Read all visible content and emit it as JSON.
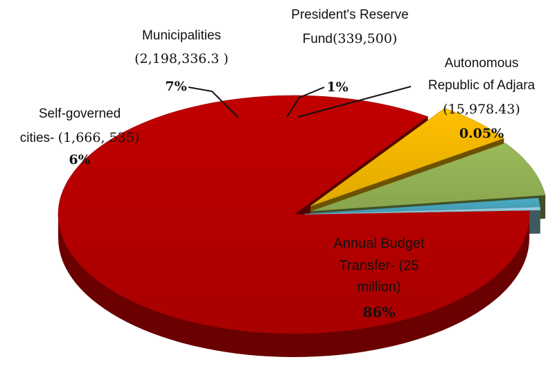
{
  "chart_data": {
    "type": "pie",
    "title": "",
    "categories": [
      "Annual Budget Transfer",
      "Self-governed cities",
      "Municipalities",
      "President's Reserve Fund",
      "Autonomous Republic of Adjara"
    ],
    "values": [
      25000000,
      1666535,
      2198336.3,
      339500,
      15978.43
    ],
    "percent_labels": [
      "86%",
      "6%",
      "7%",
      "1%",
      "0.05%"
    ],
    "colors": [
      "#c00000",
      "#ffc000",
      "#9bbb59",
      "#4bacc6",
      "#95d3e6"
    ],
    "exploded": true,
    "three_d": true,
    "labels": {
      "annual": {
        "line1": "Annual Budget",
        "line2": "Transfer- (25",
        "line3": "million)",
        "pct": "86%"
      },
      "cities": {
        "line1": "Self-governed",
        "line2a": "cities- ",
        "line2b": "(1,666, 535)",
        "pct": "6%"
      },
      "municipalities": {
        "line1": "Municipalities",
        "line2": "(2,198,336.3 )",
        "pct": "7%"
      },
      "president": {
        "line1": "President's Reserve",
        "line2a": "Fund",
        "line2b": "(339,500)",
        "pct": "1%"
      },
      "adjara": {
        "line1": "Autonomous",
        "line2": "Republic of Adjara",
        "line3": "(15,978.43)",
        "pct": "0.05%"
      }
    }
  }
}
